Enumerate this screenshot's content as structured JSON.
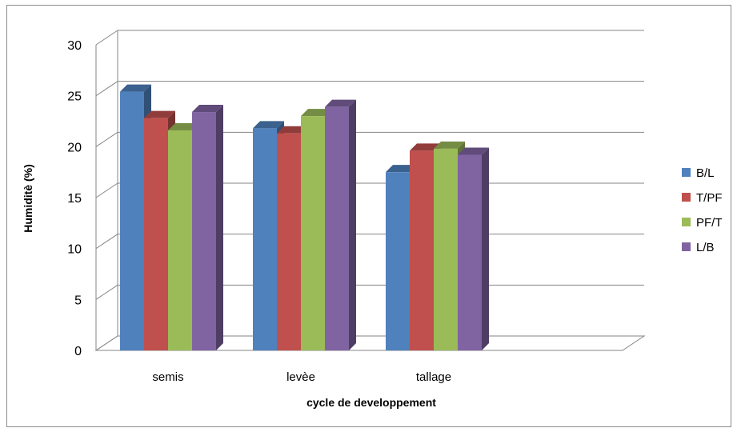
{
  "chart_data": {
    "type": "bar",
    "three_d": true,
    "categories": [
      "semis",
      "levèe",
      "tallage"
    ],
    "series": [
      {
        "name": "B/L",
        "values": [
          25.4,
          21.8,
          17.5
        ],
        "color": "#4F81BD"
      },
      {
        "name": "T/PF",
        "values": [
          22.8,
          21.3,
          19.6
        ],
        "color": "#C0504D"
      },
      {
        "name": "PF/T",
        "values": [
          21.6,
          23.0,
          19.8
        ],
        "color": "#9BBB59"
      },
      {
        "name": "L/B",
        "values": [
          23.4,
          23.9,
          19.2
        ],
        "color": "#8064A2"
      }
    ],
    "xlabel": "cycle de developpement",
    "ylabel": "Humiditè (%)",
    "ylim": [
      0,
      30
    ],
    "yticks": [
      "0",
      "5",
      "10",
      "15",
      "20",
      "25",
      "30"
    ],
    "grid": true,
    "legend_position": "right"
  }
}
